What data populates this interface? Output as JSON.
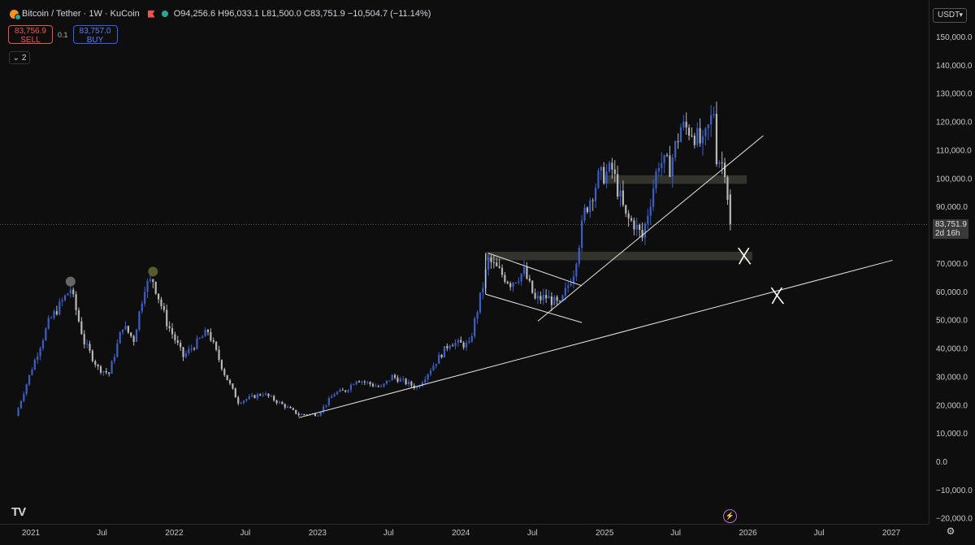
{
  "header": {
    "symbol": "Bitcoin / Tether · 1W · KuCoin",
    "ohlc": {
      "o_label": "O",
      "o": "94,256.6",
      "h_label": "H",
      "h": "96,033.1",
      "l_label": "L",
      "l": "81,500.0",
      "c_label": "C",
      "c": "83,751.9",
      "change": "−10,504.7 (−11.14%)"
    }
  },
  "trade": {
    "sell_price": "83,756.9",
    "sell_label": "SELL",
    "spread": "0.1",
    "buy_price": "83,757.0",
    "buy_label": "BUY"
  },
  "indicators": {
    "count": "2"
  },
  "currency": "USDT",
  "last_price": {
    "value": "83,751.9",
    "countdown": "2d 16h"
  },
  "colors": {
    "background": "#0e0e0e",
    "up": "#3d5fc4",
    "down": "#b7b7b7",
    "line": "#e6e6e6",
    "zone": "#3a3a34"
  },
  "chart_data": {
    "type": "candlestick",
    "timeframe": "1W",
    "ylim": [
      -20000,
      155000
    ],
    "y_ticks": [
      "150,000.0",
      "140,000.0",
      "130,000.0",
      "120,000.0",
      "110,000.0",
      "100,000.0",
      "90,000.0",
      "80,000.0",
      "70,000.0",
      "60,000.0",
      "50,000.0",
      "40,000.0",
      "30,000.0",
      "20,000.0",
      "10,000.0",
      "0.0",
      "−10,000.0",
      "−20,000.0"
    ],
    "y_tick_values": [
      150000,
      140000,
      130000,
      120000,
      110000,
      100000,
      90000,
      80000,
      70000,
      60000,
      50000,
      40000,
      30000,
      20000,
      10000,
      0,
      -10000,
      -20000
    ],
    "x_ticks": [
      "2021",
      "Jul",
      "2022",
      "Jul",
      "2023",
      "Jul",
      "2024",
      "Jul",
      "2025",
      "Jul",
      "2026",
      "Jul",
      "2027"
    ],
    "x_tick_dates": [
      "2021-01-01",
      "2021-07-01",
      "2022-01-01",
      "2022-07-01",
      "2023-01-01",
      "2023-07-01",
      "2024-01-01",
      "2024-07-01",
      "2025-01-01",
      "2025-07-01",
      "2026-01-01",
      "2026-07-01",
      "2027-01-01"
    ],
    "price_path": [
      [
        "2020-11-23",
        16000
      ],
      [
        "2021-01-04",
        33000
      ],
      [
        "2021-02-15",
        49000
      ],
      [
        "2021-04-12",
        61000
      ],
      [
        "2021-05-17",
        42000
      ],
      [
        "2021-06-21",
        33000
      ],
      [
        "2021-07-19",
        31000
      ],
      [
        "2021-08-23",
        48000
      ],
      [
        "2021-09-20",
        43000
      ],
      [
        "2021-10-18",
        62000
      ],
      [
        "2021-11-08",
        64000
      ],
      [
        "2021-12-13",
        49000
      ],
      [
        "2022-01-24",
        37000
      ],
      [
        "2022-03-28",
        46000
      ],
      [
        "2022-05-09",
        31000
      ],
      [
        "2022-06-13",
        21000
      ],
      [
        "2022-08-15",
        24000
      ],
      [
        "2022-10-10",
        19500
      ],
      [
        "2022-11-14",
        16500
      ],
      [
        "2023-01-02",
        16700
      ],
      [
        "2023-02-13",
        24000
      ],
      [
        "2023-03-13",
        25000
      ],
      [
        "2023-04-10",
        29000
      ],
      [
        "2023-06-12",
        26000
      ],
      [
        "2023-07-10",
        30000
      ],
      [
        "2023-09-11",
        26000
      ],
      [
        "2023-10-23",
        34000
      ],
      [
        "2023-12-04",
        42000
      ],
      [
        "2024-01-22",
        41000
      ],
      [
        "2024-02-26",
        62000
      ],
      [
        "2024-03-11",
        71000
      ],
      [
        "2024-05-06",
        63000
      ],
      [
        "2024-06-10",
        67000
      ],
      [
        "2024-07-08",
        57000
      ],
      [
        "2024-08-05",
        58000
      ],
      [
        "2024-09-09",
        55000
      ],
      [
        "2024-10-14",
        67000
      ],
      [
        "2024-11-11",
        88000
      ],
      [
        "2024-12-16",
        100000
      ],
      [
        "2025-01-20",
        103000
      ],
      [
        "2025-02-24",
        86000
      ],
      [
        "2025-03-17",
        84000
      ],
      [
        "2025-04-07",
        79000
      ],
      [
        "2025-05-19",
        106000
      ],
      [
        "2025-06-16",
        104000
      ],
      [
        "2025-07-14",
        118000
      ],
      [
        "2025-08-11",
        117000
      ],
      [
        "2025-09-08",
        111000
      ],
      [
        "2025-10-06",
        124000
      ],
      [
        "2025-10-13",
        108000
      ],
      [
        "2025-11-03",
        104000
      ],
      [
        "2025-11-10",
        94000
      ],
      [
        "2025-11-17",
        83751.9
      ]
    ],
    "markers": [
      {
        "date": "2021-04-12",
        "price": 63500,
        "color": "#666"
      },
      {
        "date": "2021-11-08",
        "price": 67000,
        "color": "#5a5a2a"
      }
    ],
    "lines": [
      {
        "from": [
          "2022-11-14",
          15400
        ],
        "to": [
          "2027-01-04",
          71000
        ]
      },
      {
        "from": [
          "2024-07-15",
          49500
        ],
        "to": [
          "2026-02-09",
          115000
        ]
      },
      {
        "from": [
          "2024-03-11",
          73500
        ],
        "to": [
          "2024-11-04",
          62000
        ]
      },
      {
        "from": [
          "2024-03-04",
          59000
        ],
        "to": [
          "2024-11-04",
          49000
        ]
      },
      {
        "from": [
          "2024-03-04",
          73500
        ],
        "to": [
          "2024-03-04",
          59000
        ]
      }
    ],
    "zones": [
      {
        "from": [
          "2024-12-30",
          101000
        ],
        "to": [
          "2025-12-29",
          98000
        ]
      },
      {
        "from": [
          "2024-03-04",
          74000
        ],
        "to": [
          "2026-01-12",
          71000
        ]
      }
    ],
    "crosses": [
      {
        "date": "2025-12-22",
        "price": 72500
      },
      {
        "date": "2026-03-16",
        "price": 58500
      }
    ]
  }
}
